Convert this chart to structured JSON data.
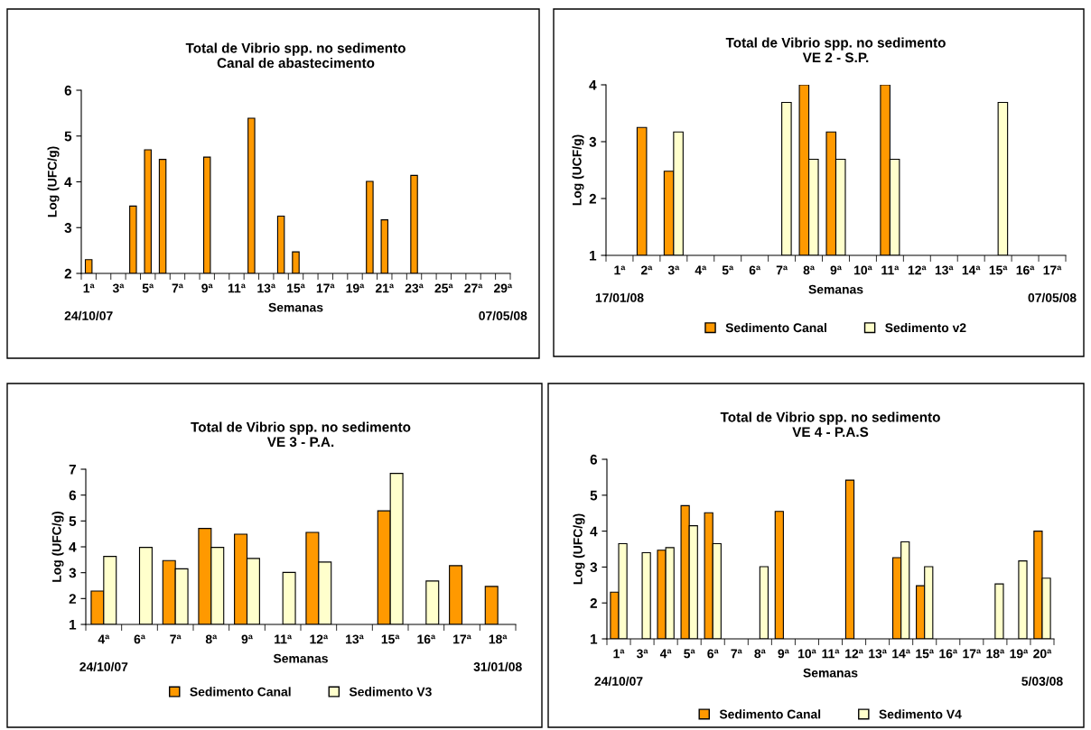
{
  "chart_data": [
    {
      "type": "bar",
      "title": "Total de Vibrio spp. no sedimento\nCanal de abastecimento",
      "xlabel": "Semanas",
      "ylabel": "Log (UFC/g)",
      "annotations": [
        "24/10/07",
        "07/05/08"
      ],
      "categories": [
        "1ª",
        null,
        "3ª",
        null,
        "5ª",
        null,
        "7ª",
        null,
        "9ª",
        null,
        "11ª",
        null,
        "13ª",
        null,
        "15ª",
        null,
        "17ª",
        null,
        "19ª",
        null,
        "21ª",
        null,
        "23ª",
        null,
        "25ª",
        null,
        "27ª",
        null,
        "29ª"
      ],
      "series": [
        {
          "color": "#ff9900",
          "values": [
            2.3,
            null,
            null,
            3.47,
            4.7,
            4.49,
            null,
            null,
            4.54,
            null,
            null,
            5.39,
            null,
            3.25,
            2.47,
            null,
            null,
            null,
            null,
            4.01,
            3.17,
            null,
            4.14,
            null,
            null,
            null,
            null,
            null,
            null
          ]
        }
      ],
      "ylim": [
        2,
        6
      ],
      "yticks": [
        2,
        3,
        4,
        5,
        6
      ],
      "grid": false,
      "legend": false
    },
    {
      "type": "bar",
      "title": "Total de Vibrio spp. no sedimento\nVE 2 - S.P.",
      "xlabel": "Semanas",
      "ylabel": "Log (UCF/g)",
      "annotations": [
        "17/01/08",
        "07/05/08"
      ],
      "categories": [
        "1ª",
        "2ª",
        "3ª",
        "4ª",
        "5ª",
        "6ª",
        "7ª",
        "8ª",
        "9ª",
        "10ª",
        "11ª",
        "12ª",
        "13ª",
        "14ª",
        "15ª",
        "16ª",
        "17ª"
      ],
      "series": [
        {
          "name": "Sedimento Canal",
          "color": "#ff9900",
          "values": [
            null,
            3.25,
            2.48,
            null,
            null,
            null,
            null,
            4.0,
            3.17,
            null,
            4.0,
            null,
            null,
            null,
            null,
            null,
            null
          ]
        },
        {
          "name": "Sedimento v2",
          "color": "#ffffcc",
          "values": [
            null,
            null,
            3.17,
            null,
            null,
            null,
            3.69,
            2.69,
            2.69,
            null,
            2.69,
            null,
            null,
            null,
            3.69,
            null,
            null
          ]
        }
      ],
      "ylim": [
        1,
        4
      ],
      "yticks": [
        1,
        2,
        3,
        4
      ],
      "grid": false,
      "legend": "bottom"
    },
    {
      "type": "bar",
      "title": "Total de Vibrio spp. no sedimento\nVE 3 - P.A.",
      "xlabel": "Semanas",
      "ylabel": "Log (UFC/g)",
      "annotations": [
        "24/10/07",
        "31/01/08"
      ],
      "categories": [
        "4ª",
        "6ª",
        "7ª",
        "8ª",
        "9ª",
        "11ª",
        "12ª",
        "13ª",
        "15ª",
        "16ª",
        "17ª",
        "18ª"
      ],
      "series": [
        {
          "name": "Sedimento Canal",
          "color": "#ff9900",
          "values": [
            2.29,
            null,
            3.47,
            4.71,
            4.49,
            null,
            4.56,
            null,
            5.39,
            null,
            3.27,
            2.47
          ]
        },
        {
          "name": "Sedimento V3",
          "color": "#ffffcc",
          "values": [
            3.63,
            3.98,
            3.15,
            3.98,
            3.55,
            3.01,
            3.41,
            null,
            6.84,
            2.68,
            null,
            null
          ]
        }
      ],
      "ylim": [
        1,
        7
      ],
      "yticks": [
        1,
        2,
        3,
        4,
        5,
        6,
        7
      ],
      "grid": false,
      "legend": "bottom"
    },
    {
      "type": "bar",
      "title": "Total de Vibrio spp. no sedimento\nVE 4 - P.A.S",
      "xlabel": "Semanas",
      "ylabel": "Log (UFC/g)",
      "annotations": [
        "24/10/07",
        "5/03/08"
      ],
      "categories": [
        "1ª",
        "3ª",
        "4ª",
        "5ª",
        "6ª",
        "7ª",
        "8ª",
        "9ª",
        "10ª",
        "11ª",
        "12ª",
        "13ª",
        "14ª",
        "15ª",
        "16ª",
        "17ª",
        "18ª",
        "19ª",
        "20ª"
      ],
      "series": [
        {
          "name": "Sedimento Canal",
          "color": "#ff9900",
          "values": [
            2.3,
            null,
            3.47,
            4.71,
            4.51,
            null,
            null,
            4.55,
            null,
            null,
            5.42,
            null,
            3.26,
            2.48,
            null,
            null,
            null,
            null,
            4.0
          ]
        },
        {
          "name": "Sedimento V4",
          "color": "#ffffcc",
          "values": [
            3.65,
            3.4,
            3.54,
            4.15,
            3.65,
            null,
            3.01,
            null,
            null,
            null,
            null,
            null,
            3.7,
            3.01,
            null,
            null,
            2.53,
            3.17,
            2.69
          ]
        }
      ],
      "ylim": [
        1,
        6
      ],
      "yticks": [
        1,
        2,
        3,
        4,
        5,
        6
      ],
      "grid": false,
      "legend": "bottom"
    }
  ]
}
